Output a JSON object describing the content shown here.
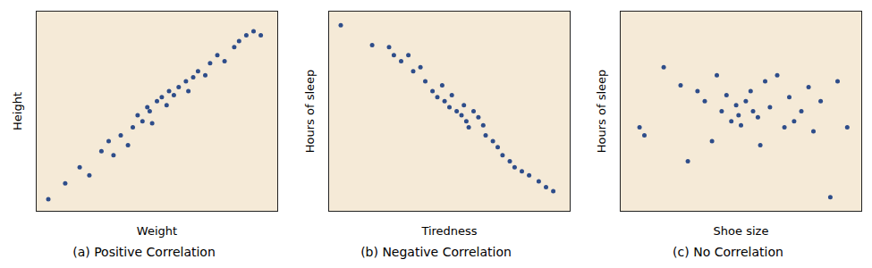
{
  "chart_data": [
    {
      "type": "scatter",
      "title": "(a) Positive Correlation",
      "xlabel": "Weight",
      "ylabel": "Height",
      "x": [
        0.05,
        0.12,
        0.18,
        0.22,
        0.27,
        0.3,
        0.32,
        0.35,
        0.38,
        0.4,
        0.42,
        0.44,
        0.46,
        0.47,
        0.48,
        0.5,
        0.52,
        0.54,
        0.55,
        0.57,
        0.59,
        0.62,
        0.63,
        0.65,
        0.67,
        0.7,
        0.72,
        0.75,
        0.78,
        0.82,
        0.84,
        0.87,
        0.9,
        0.93
      ],
      "values": [
        0.06,
        0.14,
        0.22,
        0.18,
        0.3,
        0.35,
        0.28,
        0.38,
        0.33,
        0.42,
        0.48,
        0.45,
        0.52,
        0.5,
        0.44,
        0.55,
        0.57,
        0.53,
        0.6,
        0.58,
        0.62,
        0.65,
        0.6,
        0.67,
        0.7,
        0.68,
        0.74,
        0.78,
        0.75,
        0.82,
        0.85,
        0.88,
        0.9,
        0.88
      ],
      "color": "#2e4d8a",
      "xlim": [
        0.0,
        1.0
      ],
      "ylim": [
        0.0,
        1.0
      ],
      "tick_labels": false,
      "grid": false
    },
    {
      "type": "scatter",
      "title": "(b) Negative Correlation",
      "xlabel": "Tiredness",
      "ylabel": "Hours of sleep",
      "x": [
        0.05,
        0.18,
        0.25,
        0.27,
        0.3,
        0.33,
        0.35,
        0.38,
        0.4,
        0.43,
        0.45,
        0.47,
        0.48,
        0.5,
        0.51,
        0.53,
        0.55,
        0.56,
        0.57,
        0.58,
        0.6,
        0.62,
        0.64,
        0.65,
        0.68,
        0.7,
        0.72,
        0.75,
        0.77,
        0.8,
        0.83,
        0.87,
        0.9,
        0.93
      ],
      "values": [
        0.93,
        0.83,
        0.82,
        0.78,
        0.75,
        0.78,
        0.7,
        0.72,
        0.65,
        0.6,
        0.57,
        0.63,
        0.55,
        0.52,
        0.58,
        0.5,
        0.48,
        0.53,
        0.45,
        0.42,
        0.5,
        0.47,
        0.43,
        0.38,
        0.35,
        0.32,
        0.28,
        0.25,
        0.22,
        0.2,
        0.18,
        0.15,
        0.12,
        0.1
      ],
      "color": "#2e4d8a",
      "xlim": [
        0.0,
        1.0
      ],
      "ylim": [
        0.0,
        1.0
      ],
      "tick_labels": false,
      "grid": false
    },
    {
      "type": "scatter",
      "title": "(c) No Correlation",
      "xlabel": "Shoe size",
      "ylabel": "Hours of sleep",
      "x": [
        0.08,
        0.1,
        0.18,
        0.25,
        0.28,
        0.32,
        0.35,
        0.38,
        0.4,
        0.42,
        0.44,
        0.46,
        0.48,
        0.49,
        0.5,
        0.52,
        0.54,
        0.55,
        0.57,
        0.58,
        0.6,
        0.62,
        0.65,
        0.68,
        0.7,
        0.72,
        0.75,
        0.78,
        0.8,
        0.83,
        0.87,
        0.9,
        0.94
      ],
      "values": [
        0.42,
        0.38,
        0.72,
        0.63,
        0.25,
        0.6,
        0.55,
        0.35,
        0.68,
        0.5,
        0.58,
        0.45,
        0.53,
        0.48,
        0.43,
        0.55,
        0.6,
        0.5,
        0.47,
        0.33,
        0.65,
        0.52,
        0.68,
        0.42,
        0.57,
        0.45,
        0.5,
        0.62,
        0.4,
        0.55,
        0.07,
        0.65,
        0.42
      ],
      "color": "#2e4d8a",
      "xlim": [
        0.0,
        1.0
      ],
      "ylim": [
        0.0,
        1.0
      ],
      "tick_labels": false,
      "grid": false
    }
  ]
}
